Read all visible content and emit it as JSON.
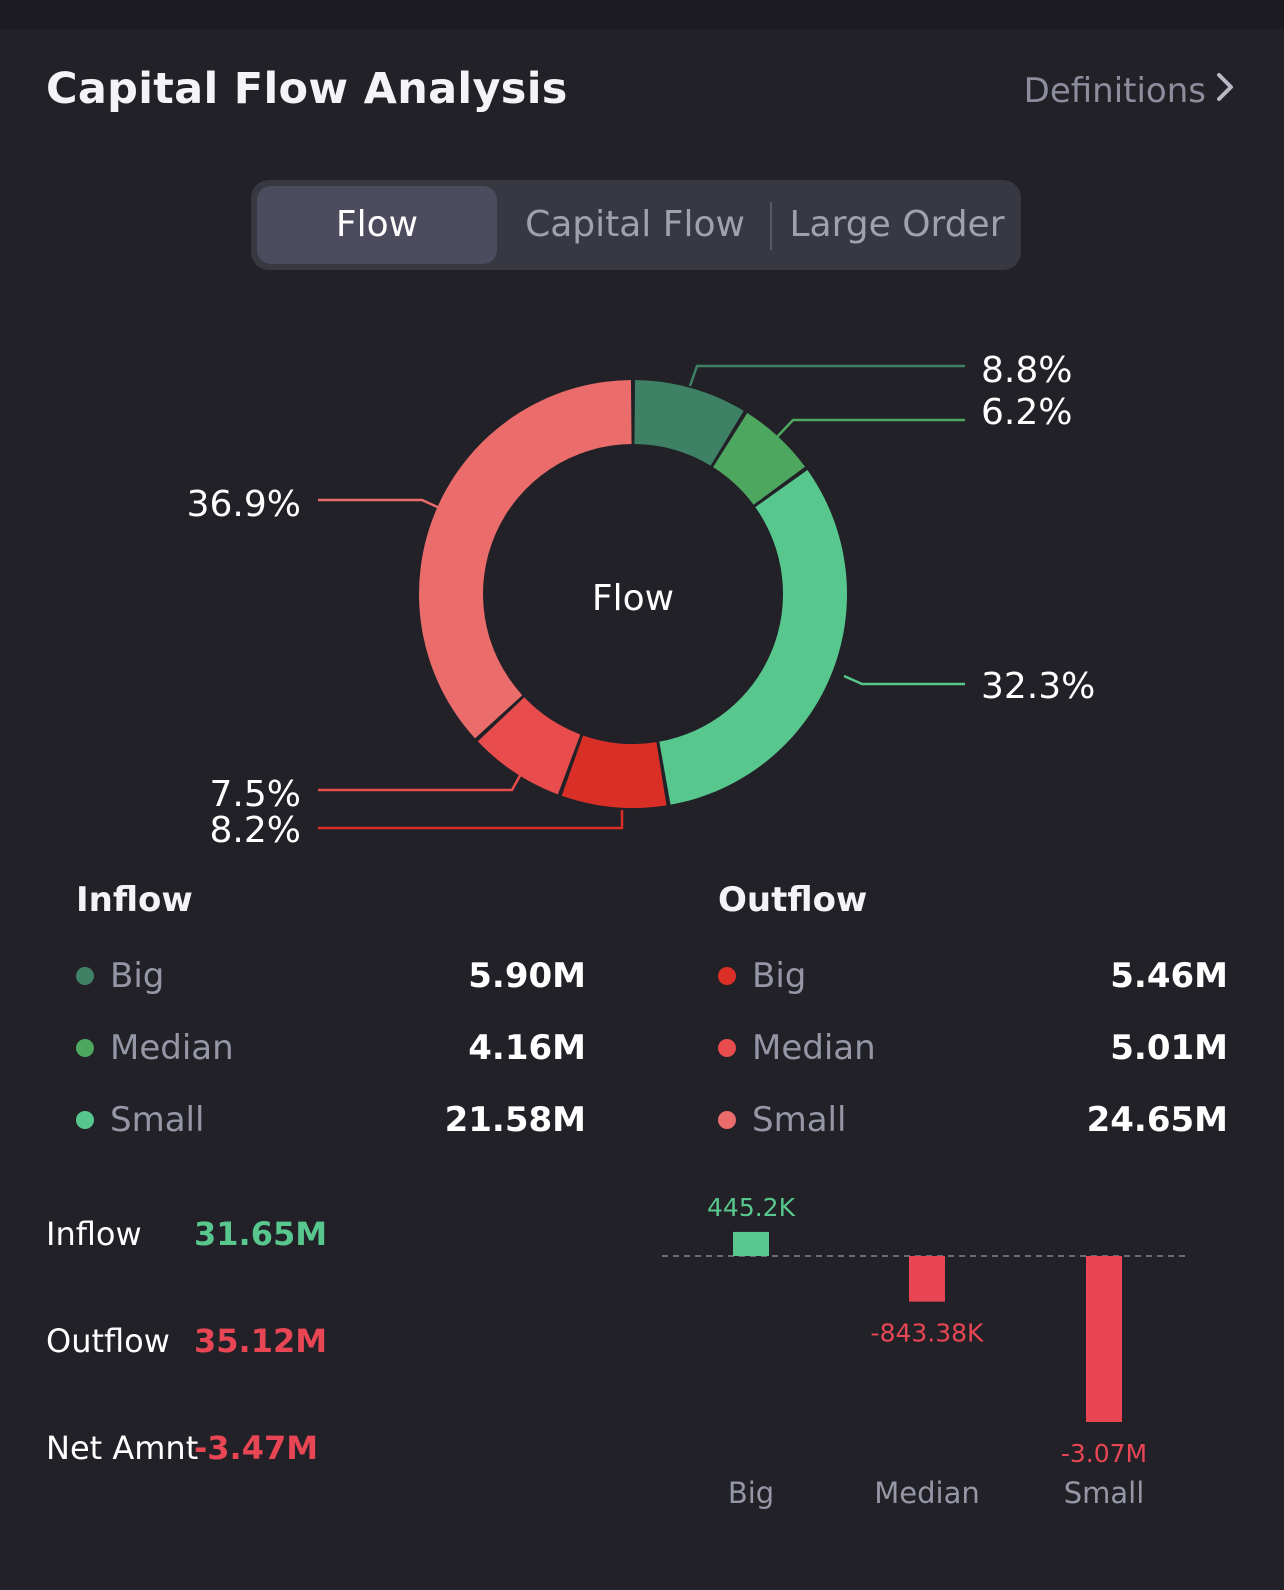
{
  "header": {
    "title": "Capital Flow Analysis",
    "definitions_label": "Definitions",
    "definitions_icon": "chevron-right-icon"
  },
  "tabs": [
    {
      "label": "Flow",
      "active": true
    },
    {
      "label": "Capital Flow",
      "active": false
    },
    {
      "label": "Large  Order",
      "active": false
    }
  ],
  "donut": {
    "center_label": "Flow",
    "segments": [
      {
        "name": "Inflow Big",
        "percent": 8.8,
        "label": "8.8%",
        "color": "#3f8164"
      },
      {
        "name": "Inflow Median",
        "percent": 6.2,
        "label": "6.2%",
        "color": "#4ea75f"
      },
      {
        "name": "Inflow Small",
        "percent": 32.3,
        "label": "32.3%",
        "color": "#58c78d"
      },
      {
        "name": "Outflow Big",
        "percent": 8.2,
        "label": "8.2%",
        "color": "#d92f27"
      },
      {
        "name": "Outflow Median",
        "percent": 7.5,
        "label": "7.5%",
        "color": "#e84c4c"
      },
      {
        "name": "Outflow Small",
        "percent": 36.9,
        "label": "36.9%",
        "color": "#ea6c6b"
      }
    ]
  },
  "inflow": {
    "heading": "Inflow",
    "items": [
      {
        "name": "Big",
        "value": "5.90M",
        "color": "#3f8164"
      },
      {
        "name": "Median",
        "value": "4.16M",
        "color": "#4ea75f"
      },
      {
        "name": "Small",
        "value": "21.58M",
        "color": "#58c78d"
      }
    ]
  },
  "outflow": {
    "heading": "Outflow",
    "items": [
      {
        "name": "Big",
        "value": "5.46M",
        "color": "#d92f27"
      },
      {
        "name": "Median",
        "value": "5.01M",
        "color": "#e84c4c"
      },
      {
        "name": "Small",
        "value": "24.65M",
        "color": "#ea6c6b"
      }
    ]
  },
  "totals": [
    {
      "label": "Inflow",
      "value": "31.65M",
      "color": "#58c78d"
    },
    {
      "label": "Outflow",
      "value": "35.12M",
      "color": "#e84654"
    },
    {
      "label": "Net Amnt",
      "value": "-3.47M",
      "color": "#e84654"
    }
  ],
  "colors": {
    "positive": "#58c78d",
    "negative": "#e84654",
    "background": "#212127"
  },
  "chart_data": {
    "type": "bar",
    "categories": [
      "Big",
      "Median",
      "Small"
    ],
    "values": [
      445.2,
      -843.38,
      -3070
    ],
    "value_labels": [
      "445.2K",
      "-843.38K",
      "-3.07M"
    ],
    "unit": "K"
  }
}
